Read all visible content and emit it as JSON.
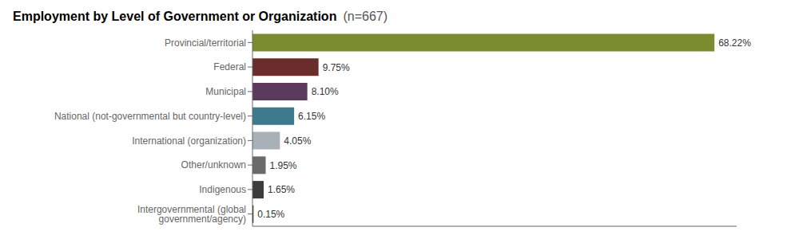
{
  "chart_data": {
    "type": "bar",
    "orientation": "horizontal",
    "title": "Employment by Level of Government or Organization",
    "subtitle": "(n=667)",
    "categories": [
      "Provincial/territorial",
      "Federal",
      "Municipal",
      "National (not-governmental but country-level)",
      "International (organization)",
      "Other/unknown",
      "Indigenous",
      "Intergovernmental (global government/agency)"
    ],
    "values": [
      68.22,
      9.75,
      8.1,
      6.15,
      4.05,
      1.95,
      1.65,
      0.15
    ],
    "value_labels": [
      "68.22%",
      "9.75%",
      "8.10%",
      "6.15%",
      "4.05%",
      "1.95%",
      "1.65%",
      "0.15%"
    ],
    "colors": [
      "#7b8c2f",
      "#6b2c2c",
      "#5c3a5e",
      "#3d7a8c",
      "#a8b0b8",
      "#6a6a6a",
      "#3d3d3d",
      "#1a1a1a"
    ],
    "xlim": [
      0,
      71.5
    ],
    "data_labels": true,
    "tick_labels": "y",
    "grid": false
  }
}
